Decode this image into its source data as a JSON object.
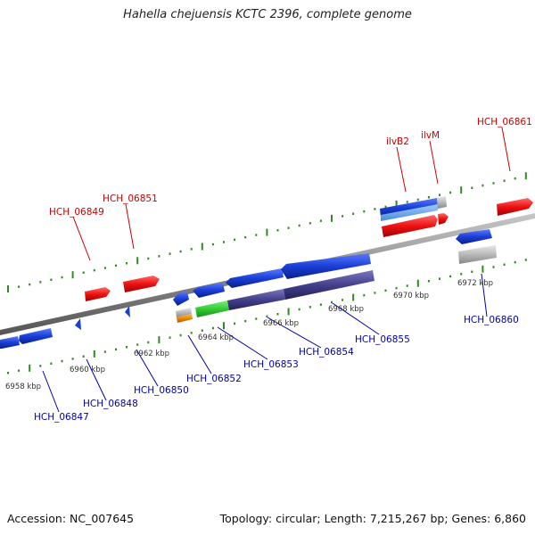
{
  "title": "Hahella chejuensis KCTC 2396, complete genome",
  "footer": {
    "accession": "Accession: NC_007645",
    "summary": "Topology: circular; Length: 7,215,267 bp; Genes: 6,860"
  },
  "colors": {
    "top_strand_label": "#cc0000",
    "bottom_strand_label": "#0000aa",
    "tick": "#2e8b22",
    "backbone": "#888888",
    "red_gene": "#ee1111",
    "blue_gene": "#1a3fd6",
    "purple_gene": "#44408a",
    "green_gene": "#33cc33",
    "orange_gene": "#ee8800",
    "gray_gene": "#b8b8b8"
  },
  "scale_labels": [
    "6958 kbp",
    "6960 kbp",
    "6962 kbp",
    "6964 kbp",
    "6966 kbp",
    "6968 kbp",
    "6970 kbp",
    "6972 kbp"
  ],
  "gene_labels_top": [
    "HCH_06849",
    "HCH_06851",
    "ilvB2",
    "ilvM",
    "HCH_06861"
  ],
  "gene_labels_bottom": [
    "HCH_06847",
    "HCH_06848",
    "HCH_06850",
    "HCH_06852",
    "HCH_06853",
    "HCH_06854",
    "HCH_06855",
    "HCH_06860"
  ]
}
